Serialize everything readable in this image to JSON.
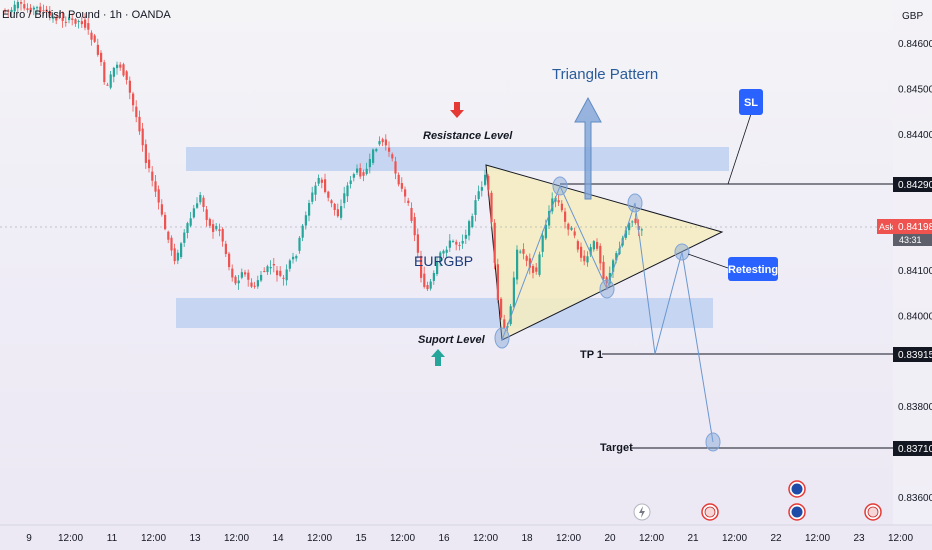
{
  "header": {
    "title": "Euro / British Pound · 1h · OANDA",
    "currency": "GBP"
  },
  "colors": {
    "up": "#26a69a",
    "down": "#ef5350",
    "zone": "#b7cdf0",
    "triangle_fill": "#f5ecbf",
    "accent_blue": "#2962ff",
    "path_blue": "#6a97cf"
  },
  "annotations": {
    "triangle_title": "Triangle Pattern",
    "resistance_label": "Resistance Level",
    "support_label": "Suport Level",
    "pair_label": "EURGBP",
    "sl_label": "SL",
    "retesting_label": "Retesting",
    "tp1_label": "TP 1",
    "target_label": "Target"
  },
  "price_axis": {
    "ask_label": "Ask",
    "ask_value": "0.84198",
    "countdown": "43:31",
    "sl_value": "0.84290",
    "tp1_value": "0.83915",
    "target_value": "0.83710"
  },
  "chart_data": {
    "type": "candlestick",
    "title": "Euro / British Pound · 1h · OANDA",
    "y_unit": "GBP",
    "y_ticks": [
      "0.84600",
      "0.84500",
      "0.84400",
      "0.84290",
      "0.84198",
      "0.84100",
      "0.84000",
      "0.83915",
      "0.83800",
      "0.83710",
      "0.83600"
    ],
    "y_tick_values": [
      0.846,
      0.845,
      0.844,
      0.8429,
      0.84198,
      0.841,
      0.84,
      0.83915,
      0.838,
      0.8371,
      0.836
    ],
    "ylim": [
      0.8355,
      0.8467
    ],
    "x_ticks": [
      "9",
      "12:00",
      "11",
      "12:00",
      "13",
      "12:00",
      "14",
      "12:00",
      "15",
      "12:00",
      "16",
      "12:00",
      "18",
      "12:00",
      "20",
      "12:00",
      "21",
      "12:00",
      "22",
      "12:00",
      "23",
      "12:00"
    ],
    "resistance_zone": [
      0.84315,
      0.84365
    ],
    "support_zone": [
      0.8397,
      0.8404
    ],
    "stop_loss": 0.8429,
    "take_profit_1": 0.83915,
    "target": 0.8371,
    "current_ask": 0.84198
  }
}
